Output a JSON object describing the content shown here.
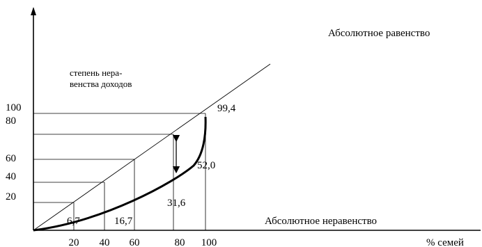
{
  "chart_data": {
    "type": "line",
    "title": "",
    "xlabel": "% семей",
    "ylabel": "",
    "xlim": [
      0,
      100
    ],
    "ylim": [
      0,
      100
    ],
    "x_ticks": [
      "20",
      "40",
      "60",
      "80",
      "100"
    ],
    "y_ticks": [
      "100",
      "80",
      "60",
      "40",
      "20"
    ],
    "series": [
      {
        "name": "Абсолютное равенство",
        "x": [
          0,
          100
        ],
        "y": [
          0,
          100
        ]
      },
      {
        "name": "",
        "x": [
          0,
          20,
          40,
          60,
          80,
          100
        ],
        "y": [
          0,
          6.7,
          16.7,
          31.6,
          52.0,
          99.4
        ]
      }
    ],
    "data_labels": [
      "6,7",
      "16,7",
      "31,6",
      "52,0",
      "99,4"
    ],
    "annotations": {
      "equality": "Абсолютное равенство",
      "inequality": "Абсолютное неравенство",
      "gap_note_line1": "степень нера-",
      "gap_note_line2": "венства доходов"
    },
    "grid": false
  }
}
